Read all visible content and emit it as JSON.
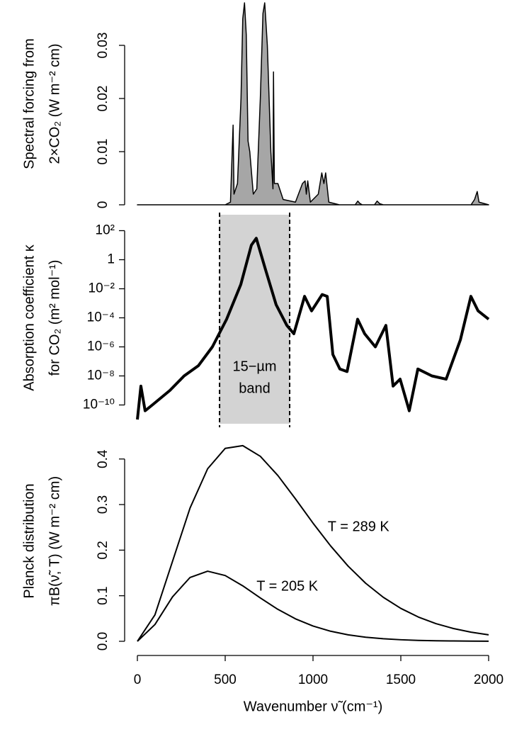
{
  "chart_data": [
    {
      "type": "area",
      "ylabel": [
        "Spectral forcing from",
        "2×CO₂  (W m⁻² cm)"
      ],
      "xlim": [
        0,
        2000
      ],
      "ylim": [
        0,
        0.038
      ],
      "yticks": [
        0,
        0.01,
        0.02,
        0.03
      ],
      "x": [
        0,
        500,
        530,
        545,
        550,
        570,
        590,
        600,
        610,
        620,
        630,
        640,
        660,
        680,
        700,
        715,
        725,
        740,
        760,
        772,
        775,
        780,
        800,
        830,
        900,
        940,
        955,
        962,
        970,
        985,
        1030,
        1050,
        1062,
        1072,
        1090,
        1150,
        1240,
        1255,
        1265,
        1280,
        1350,
        1365,
        1380,
        1400,
        1900,
        1920,
        1935,
        1945,
        2000
      ],
      "series": [
        {
          "color": "#a6a6a6",
          "values": [
            0,
            0,
            0.0005,
            0.015,
            0.002,
            0.004,
            0.02,
            0.035,
            0.038,
            0.032,
            0.012,
            0.01,
            0.002,
            0.003,
            0.02,
            0.036,
            0.038,
            0.03,
            0.01,
            0.003,
            0.025,
            0.004,
            0.004,
            0.001,
            0.0005,
            0.004,
            0.0045,
            0.002,
            0.0045,
            0.0005,
            0.002,
            0.006,
            0.004,
            0.006,
            0.0005,
            0,
            0,
            0.0007,
            0.0003,
            0,
            0,
            0.0007,
            0.0002,
            0,
            0,
            0.001,
            0.0025,
            0.0005,
            0
          ]
        }
      ]
    },
    {
      "type": "line",
      "ylabel": [
        "Absorption coefficient κ",
        "for CO₂  (m² mol⁻¹)"
      ],
      "log_y": true,
      "xlim": [
        0,
        2000
      ],
      "ylim": [
        1e-11,
        1000
      ],
      "yticks": [
        {
          "value": 100,
          "label": "10²"
        },
        1,
        {
          "value": 0.01,
          "label": "10⁻²"
        },
        {
          "value": 0.0001,
          "label": "10⁻⁴"
        },
        {
          "value": 1e-06,
          "label": "10⁻⁶"
        },
        {
          "value": 1e-08,
          "label": "10⁻⁸"
        },
        {
          "value": 1e-10,
          "label": "10⁻¹⁰"
        }
      ],
      "band": {
        "range": [
          468,
          867
        ],
        "label": [
          "15−µm",
          "band"
        ]
      },
      "x": [
        0,
        20,
        44,
        85,
        185,
        266,
        347,
        427,
        508,
        589,
        649,
        677,
        730,
        790,
        851,
        891,
        952,
        992,
        1052,
        1081,
        1113,
        1153,
        1194,
        1254,
        1294,
        1355,
        1415,
        1456,
        1496,
        1548,
        1597,
        1677,
        1758,
        1839,
        1899,
        1940,
        2000
      ],
      "series": [
        {
          "color": "#000000",
          "values": [
            1e-11,
            2e-09,
            4e-11,
            1e-10,
            1e-09,
            1e-08,
            5e-08,
            1e-06,
            8e-05,
            0.02,
            10,
            30,
            0.2,
            0.0008,
            3e-05,
            8e-06,
            0.003,
            0.0003,
            0.004,
            0.003,
            3e-07,
            3e-08,
            2e-08,
            8e-05,
            8e-06,
            1e-06,
            3e-05,
            2e-09,
            6e-09,
            4e-11,
            3e-08,
            1e-08,
            6e-09,
            3e-06,
            0.003,
            0.0003,
            8e-05
          ]
        }
      ]
    },
    {
      "type": "line",
      "ylabel": [
        "Planck distribution",
        "πB(ν̃, T)  (W m⁻² cm)"
      ],
      "xlabel": "Wavenumber ν̃  (cm⁻¹)",
      "xlim": [
        0,
        2000
      ],
      "ylim": [
        0,
        0.44
      ],
      "xticks": [
        0,
        500,
        1000,
        1500,
        2000
      ],
      "yticks": [
        {
          "value": 0,
          "label": "0.0"
        },
        0.1,
        0.2,
        0.3,
        0.4
      ],
      "x": [
        0,
        100,
        200,
        300,
        400,
        500,
        600,
        700,
        800,
        900,
        1000,
        1100,
        1200,
        1300,
        1400,
        1500,
        1600,
        1700,
        1800,
        1900,
        2000
      ],
      "series": [
        {
          "name": "T = 289 K",
          "color": "#000000",
          "values": [
            0,
            0.058,
            0.1754,
            0.2926,
            0.3786,
            0.4233,
            0.4293,
            0.4059,
            0.3637,
            0.3125,
            0.2593,
            0.2094,
            0.1649,
            0.1273,
            0.0966,
            0.0722,
            0.0532,
            0.0388,
            0.028,
            0.02,
            0.0142
          ]
        },
        {
          "name": "T = 205 K",
          "color": "#000000",
          "values": [
            0,
            0.0368,
            0.0975,
            0.1401,
            0.1538,
            0.1443,
            0.1217,
            0.0951,
            0.0701,
            0.0493,
            0.0335,
            0.0221,
            0.0142,
            0.009,
            0.0056,
            0.0034,
            0.002,
            0.0012,
            0.0007,
            0.0004,
            0.0002
          ]
        }
      ]
    }
  ]
}
